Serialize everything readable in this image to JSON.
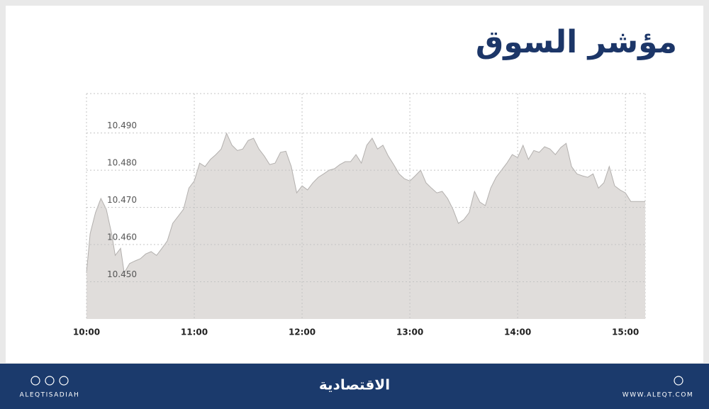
{
  "chart_data": {
    "type": "area",
    "title": "مؤشر السوق",
    "x": [
      "10:00",
      "10:02",
      "10:05",
      "10:08",
      "10:11",
      "10:14",
      "10:16",
      "10:19",
      "10:21",
      "10:24",
      "10:27",
      "10:30",
      "10:33",
      "10:36",
      "10:39",
      "10:42",
      "10:45",
      "10:48",
      "10:51",
      "10:54",
      "10:57",
      "11:00",
      "11:03",
      "11:06",
      "11:09",
      "11:12",
      "11:15",
      "11:18",
      "11:21",
      "11:24",
      "11:27",
      "11:30",
      "11:33",
      "11:36",
      "11:39",
      "11:42",
      "11:45",
      "11:48",
      "11:51",
      "11:54",
      "11:57",
      "12:00",
      "12:03",
      "12:06",
      "12:09",
      "12:12",
      "12:15",
      "12:18",
      "12:21",
      "12:24",
      "12:27",
      "12:30",
      "12:33",
      "12:36",
      "12:39",
      "12:42",
      "12:45",
      "12:48",
      "12:51",
      "12:54",
      "12:57",
      "13:00",
      "13:03",
      "13:06",
      "13:09",
      "13:12",
      "13:15",
      "13:18",
      "13:21",
      "13:24",
      "13:27",
      "13:30",
      "13:33",
      "13:36",
      "13:39",
      "13:42",
      "13:45",
      "13:48",
      "13:51",
      "13:54",
      "13:57",
      "14:00",
      "14:03",
      "14:06",
      "14:09",
      "14:12",
      "14:15",
      "14:18",
      "14:21",
      "14:24",
      "14:27",
      "14:30",
      "14:33",
      "14:36",
      "14:39",
      "14:42",
      "14:45",
      "14:48",
      "14:51",
      "14:54",
      "14:57",
      "15:00",
      "15:03",
      "15:11"
    ],
    "values": [
      10.4524,
      10.4629,
      10.4686,
      10.4724,
      10.4695,
      10.4629,
      10.4571,
      10.459,
      10.4524,
      10.4549,
      10.4556,
      10.4562,
      10.4575,
      10.4581,
      10.4571,
      10.459,
      10.461,
      10.4657,
      10.4676,
      10.4695,
      10.4752,
      10.4771,
      10.4819,
      10.481,
      10.4829,
      10.4842,
      10.4857,
      10.4899,
      10.4867,
      10.4853,
      10.4857,
      10.488,
      10.4886,
      10.4857,
      10.4838,
      10.4815,
      10.4819,
      10.4848,
      10.4851,
      10.481,
      10.4739,
      10.4758,
      10.4747,
      10.4766,
      10.4781,
      10.479,
      10.48,
      10.4804,
      10.4815,
      10.4823,
      10.4823,
      10.4842,
      10.4819,
      10.4867,
      10.4886,
      10.4857,
      10.4867,
      10.4838,
      10.4815,
      10.479,
      10.4777,
      10.4771,
      10.4785,
      10.48,
      10.4766,
      10.4752,
      10.4739,
      10.4743,
      10.4724,
      10.4695,
      10.4657,
      10.4667,
      10.4686,
      10.4743,
      10.4714,
      10.4705,
      10.4752,
      10.4781,
      10.48,
      10.4819,
      10.4842,
      10.4834,
      10.4867,
      10.4829,
      10.4853,
      10.4848,
      10.4863,
      10.4857,
      10.4842,
      10.4861,
      10.4872,
      10.481,
      10.479,
      10.4785,
      10.4781,
      10.479,
      10.4752,
      10.4766,
      10.481,
      10.4758,
      10.4747,
      10.4739,
      10.4716,
      10.4716
    ],
    "color": "#e0dddb",
    "line_color": "#b3b0ae",
    "xlim": [
      "10:00",
      "15:11"
    ],
    "xticks": [
      "10:00",
      "11:00",
      "12:00",
      "13:00",
      "14:00",
      "15:00"
    ],
    "ylim": [
      10.44,
      10.5006
    ],
    "yticks": [
      {
        "value": 10.45,
        "label": "10.450"
      },
      {
        "value": 10.46,
        "label": "10.460"
      },
      {
        "value": 10.47,
        "label": "10.470"
      },
      {
        "value": 10.48,
        "label": "10.480"
      },
      {
        "value": 10.49,
        "label": "10.490"
      }
    ],
    "grid": true
  },
  "footer": {
    "left": "ALEQTISADIAH",
    "center": "الاقتصادية",
    "right": "WWW.ALEQT.COM"
  }
}
